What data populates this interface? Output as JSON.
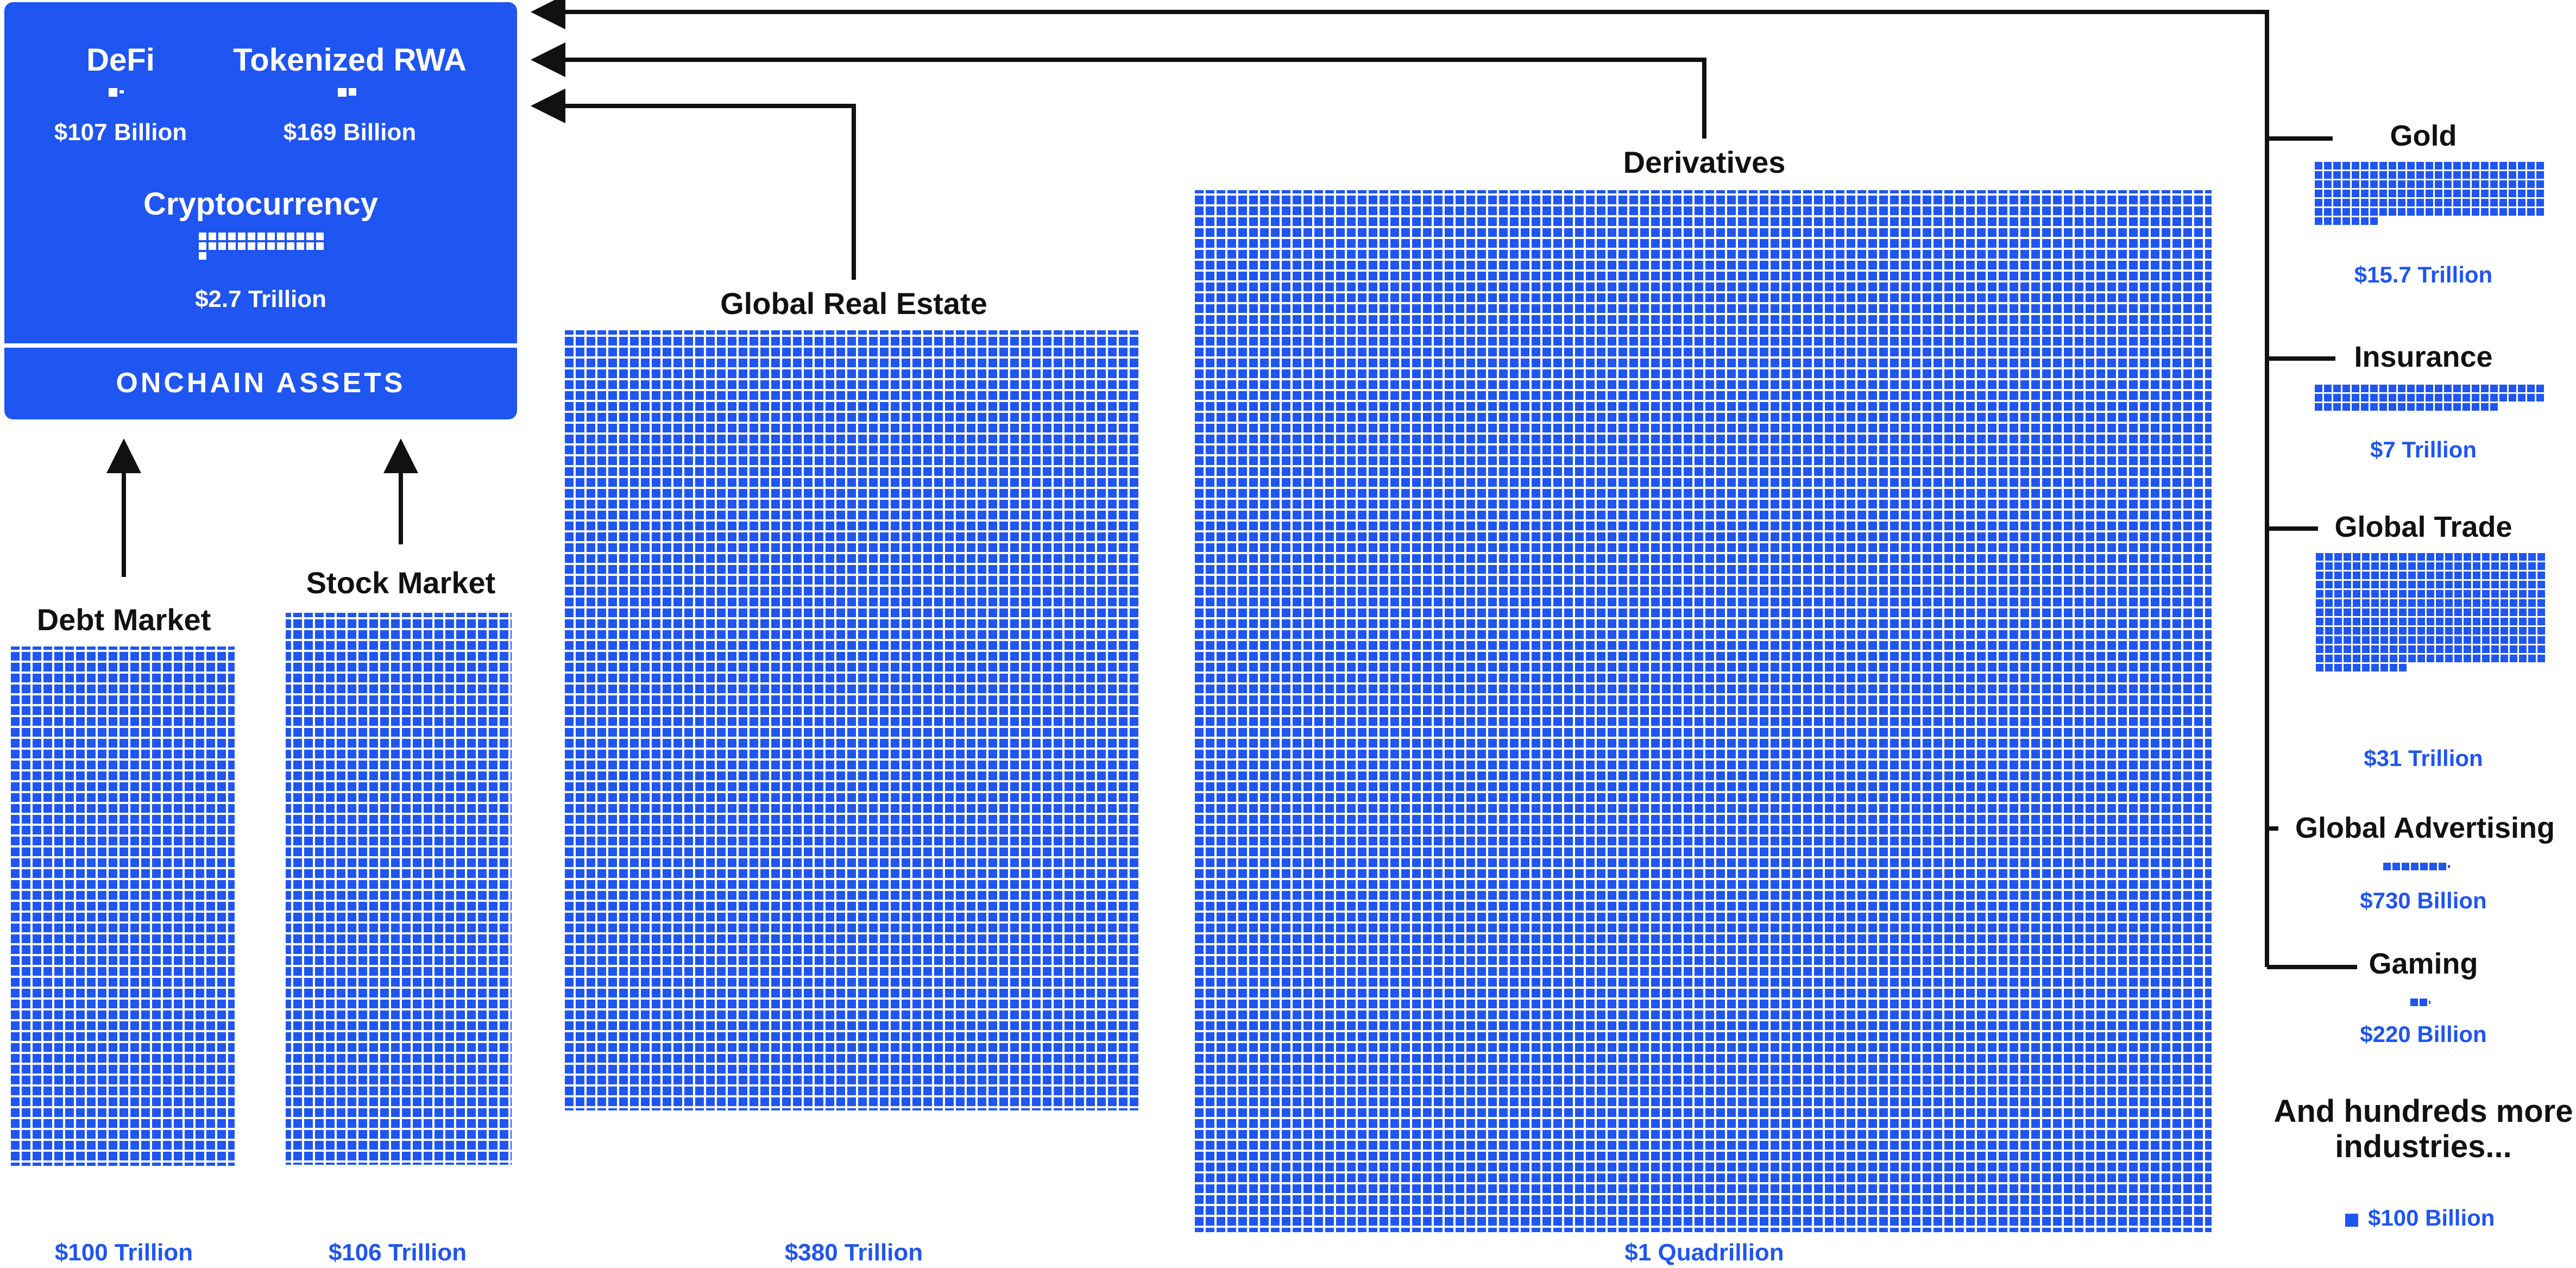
{
  "colors": {
    "accent": "#1f55f0",
    "text": "#111111",
    "value_text": "#1f55f0",
    "panel_text": "#ffffff",
    "arrow": "#111111"
  },
  "chart_data": {
    "type": "waffle",
    "unit_value": 100,
    "unit_label": "$100 Billion",
    "footnote": "And hundreds more industries...",
    "onchain_panel": {
      "title": "ONCHAIN ASSETS",
      "items": [
        {
          "name": "DeFi",
          "value_label": "$107 Billion",
          "value": 107
        },
        {
          "name": "Tokenized RWA",
          "value_label": "$169 Billion",
          "value": 169
        },
        {
          "name": "Cryptocurrency",
          "value_label": "$2.7 Trillion",
          "value": 2700
        }
      ]
    },
    "markets": [
      {
        "name": "Debt Market",
        "value_label": "$100 Trillion",
        "value": 100000
      },
      {
        "name": "Stock Market",
        "value_label": "$106 Trillion",
        "value": 106000
      },
      {
        "name": "Global Real Estate",
        "value_label": "$380 Trillion",
        "value": 380000
      },
      {
        "name": "Derivatives",
        "value_label": "$1 Quadrillion",
        "value": 1000000
      }
    ],
    "other_industries": [
      {
        "name": "Gold",
        "value_label": "$15.7 Trillion",
        "value": 15700
      },
      {
        "name": "Insurance",
        "value_label": "$7 Trillion",
        "value": 7000
      },
      {
        "name": "Global Trade",
        "value_label": "$31 Trillion",
        "value": 31000
      },
      {
        "name": "Global Advertising",
        "value_label": "$730 Billion",
        "value": 730
      },
      {
        "name": "Gaming",
        "value_label": "$220 Billion",
        "value": 220
      }
    ]
  }
}
